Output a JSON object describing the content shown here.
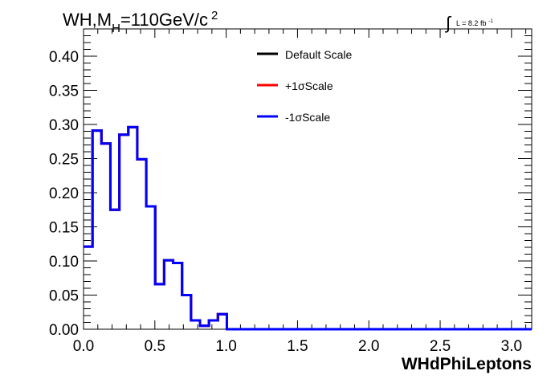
{
  "title": {
    "main": "WH,M",
    "sub": "H",
    "rest": "=110GeV/c",
    "sup": "2"
  },
  "lumi": {
    "integral_symbol": "∫",
    "text": "L = 8.2 fb",
    "sup": "-1"
  },
  "chart_data": {
    "type": "line",
    "step": true,
    "xlabel": "WHdPhiLeptons",
    "ylabel": "",
    "xlim": [
      0,
      3.1416
    ],
    "ylim": [
      0,
      0.44
    ],
    "x_ticks": [
      0.0,
      0.5,
      1.0,
      1.5,
      2.0,
      2.5,
      3.0
    ],
    "x_tick_labels": [
      "0.0",
      "0.5",
      "1.0",
      "1.5",
      "2.0",
      "2.5",
      "3.0"
    ],
    "y_ticks": [
      0.0,
      0.05,
      0.1,
      0.15,
      0.2,
      0.25,
      0.3,
      0.35,
      0.4
    ],
    "y_tick_labels": [
      "0.00",
      "0.05",
      "0.10",
      "0.15",
      "0.20",
      "0.25",
      "0.30",
      "0.35",
      "0.40"
    ],
    "grid": false,
    "legend_position": "top-center",
    "bin_width": 0.0628,
    "bin_edges_start": 0.0,
    "series": [
      {
        "name": "Default Scale",
        "color": "#000000",
        "values": [
          0.121,
          0.291,
          0.272,
          0.175,
          0.285,
          0.296,
          0.249,
          0.18,
          0.066,
          0.101,
          0.097,
          0.05,
          0.013,
          0.005,
          0.013,
          0.022,
          0,
          0,
          0,
          0,
          0,
          0,
          0,
          0,
          0,
          0,
          0,
          0,
          0,
          0,
          0,
          0,
          0,
          0,
          0,
          0,
          0,
          0,
          0,
          0,
          0,
          0,
          0,
          0,
          0,
          0,
          0,
          0,
          0,
          0
        ]
      },
      {
        "name": "+1σScale",
        "color": "#ff0000",
        "values": [
          0.121,
          0.291,
          0.272,
          0.175,
          0.285,
          0.296,
          0.249,
          0.18,
          0.066,
          0.101,
          0.097,
          0.05,
          0.013,
          0.005,
          0.013,
          0.022,
          0,
          0,
          0,
          0,
          0,
          0,
          0,
          0,
          0,
          0,
          0,
          0,
          0,
          0,
          0,
          0,
          0,
          0,
          0,
          0,
          0,
          0,
          0,
          0,
          0,
          0,
          0,
          0,
          0,
          0,
          0,
          0,
          0,
          0
        ]
      },
      {
        "name": "-1σScale",
        "color": "#0000ff",
        "values": [
          0.121,
          0.291,
          0.272,
          0.175,
          0.285,
          0.296,
          0.249,
          0.18,
          0.066,
          0.101,
          0.097,
          0.05,
          0.013,
          0.005,
          0.013,
          0.022,
          0,
          0,
          0,
          0,
          0,
          0,
          0,
          0,
          0,
          0,
          0,
          0,
          0,
          0,
          0,
          0,
          0,
          0,
          0,
          0,
          0,
          0,
          0,
          0,
          0,
          0,
          0,
          0,
          0,
          0,
          0,
          0,
          0,
          0
        ]
      }
    ]
  }
}
